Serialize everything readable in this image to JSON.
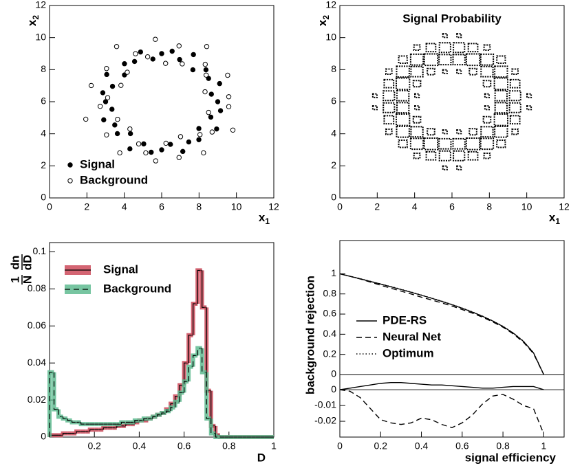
{
  "chart_data": [
    {
      "type": "scatter",
      "xlabel": {
        "base": "x",
        "sub": "1"
      },
      "ylabel": {
        "base": "x",
        "sub": "2"
      },
      "xlim": [
        0,
        12
      ],
      "ylim": [
        0,
        12
      ],
      "xticks": [
        0,
        2,
        4,
        6,
        8,
        10,
        12
      ],
      "yticks": [
        0,
        2,
        4,
        6,
        8,
        10,
        12
      ],
      "legend": "lower left",
      "series": [
        {
          "name": "Signal",
          "marker": "filled",
          "color": "#000000",
          "x": [
            9.0,
            8.66,
            9.1,
            8.51,
            8.37,
            7.67,
            7.7,
            6.96,
            6.56,
            6.0,
            5.53,
            4.87,
            4.55,
            4.01,
            4.01,
            3.06,
            3.37,
            2.85,
            3.0,
            3.34,
            2.9,
            3.49,
            3.63,
            4.33,
            4.3,
            5.04,
            5.44,
            6.0,
            6.47,
            7.13,
            7.45,
            7.99,
            7.99,
            8.94,
            8.63,
            9.15
          ],
          "values": [
            6.0,
            6.47,
            7.13,
            7.45,
            7.99,
            7.99,
            8.94,
            8.63,
            9.15,
            9.0,
            8.66,
            9.1,
            8.51,
            8.37,
            7.67,
            7.7,
            6.96,
            6.56,
            6.0,
            5.53,
            4.87,
            4.55,
            4.01,
            4.01,
            3.06,
            3.37,
            2.85,
            3.0,
            3.34,
            2.9,
            3.49,
            3.63,
            4.33,
            4.3,
            5.04,
            5.44
          ]
        },
        {
          "name": "Background",
          "marker": "open",
          "color": "#000000",
          "x": [
            9.59,
            8.32,
            9.53,
            8.38,
            8.33,
            8.41,
            7.1,
            6.93,
            6.21,
            5.66,
            5.25,
            4.6,
            3.59,
            4.16,
            3.05,
            3.82,
            2.23,
            3.11,
            2.71,
            1.94,
            3.64,
            3.05,
            4.3,
            3.76,
            4.77,
            5.15,
            5.68,
            6.23,
            6.93,
            7.01,
            8.24,
            8.05,
            8.7,
            9.81,
            8.51,
            9.59
          ],
          "values": [
            6.31,
            6.62,
            7.65,
            7.66,
            8.33,
            9.44,
            8.36,
            9.48,
            8.39,
            9.89,
            8.8,
            8.99,
            9.44,
            7.84,
            8.07,
            7.02,
            7.01,
            6.25,
            5.71,
            4.91,
            4.9,
            3.93,
            4.3,
            2.81,
            3.37,
            2.81,
            2.31,
            3.41,
            2.52,
            3.82,
            2.81,
            3.95,
            4.11,
            4.23,
            5.33,
            5.69
          ]
        }
      ]
    },
    {
      "type": "heatmap",
      "title": "Signal Probability",
      "xlabel": {
        "base": "x",
        "sub": "1"
      },
      "ylabel": {
        "base": "x",
        "sub": "2"
      },
      "xlim": [
        0,
        12
      ],
      "ylim": [
        0,
        12
      ],
      "xticks": [
        0,
        2,
        4,
        6,
        8,
        10,
        12
      ],
      "yticks": [
        0,
        2,
        4,
        6,
        8,
        10,
        12
      ],
      "color": "#000000",
      "xbins": [
        1.5,
        2.25,
        3,
        3.75,
        4.5,
        5.25,
        6,
        6.75,
        7.5,
        8.25,
        9,
        9.75,
        10.5
      ],
      "ybins": [
        1.5,
        2.25,
        3,
        3.75,
        4.5,
        5.25,
        6,
        6.75,
        7.5,
        8.25,
        9,
        9.75,
        10.5
      ],
      "values": [
        [
          0,
          0,
          0,
          0,
          0,
          0.1,
          0.1,
          0,
          0,
          0,
          0,
          0
        ],
        [
          0,
          0,
          0,
          0.2,
          0.5,
          0.7,
          0.7,
          0.5,
          0.2,
          0,
          0,
          0
        ],
        [
          0,
          0,
          0.4,
          0.9,
          1,
          0.8,
          0.8,
          1,
          0.9,
          0.4,
          0,
          0
        ],
        [
          0,
          0.2,
          0.9,
          0.8,
          0.3,
          0.1,
          0.1,
          0.3,
          0.8,
          0.9,
          0.2,
          0
        ],
        [
          0,
          0.5,
          1,
          0.3,
          0,
          0,
          0,
          0,
          0.3,
          1,
          0.5,
          0
        ],
        [
          0.1,
          0.7,
          0.8,
          0.1,
          0,
          0,
          0,
          0,
          0.1,
          0.8,
          0.7,
          0.1
        ],
        [
          0.1,
          0.7,
          0.8,
          0.1,
          0,
          0,
          0,
          0,
          0.1,
          0.8,
          0.7,
          0.1
        ],
        [
          0,
          0.5,
          1,
          0.3,
          0,
          0,
          0,
          0,
          0.3,
          1,
          0.5,
          0
        ],
        [
          0,
          0.2,
          0.9,
          0.8,
          0.3,
          0.1,
          0.1,
          0.3,
          0.8,
          0.9,
          0.2,
          0
        ],
        [
          0,
          0,
          0.4,
          0.9,
          1,
          0.8,
          0.8,
          1,
          0.9,
          0.4,
          0,
          0
        ],
        [
          0,
          0,
          0,
          0.2,
          0.5,
          0.7,
          0.7,
          0.5,
          0.2,
          0,
          0,
          0
        ],
        [
          0,
          0,
          0,
          0,
          0,
          0.1,
          0.1,
          0,
          0,
          0,
          0,
          0
        ]
      ]
    },
    {
      "type": "histogram",
      "xlabel": "D",
      "ylabel": {
        "num1": "1",
        "den1": "N",
        "num2": "dn",
        "den2": "dD"
      },
      "xlim": [
        0,
        1
      ],
      "ylim": [
        0,
        0.105
      ],
      "xticks": [
        0.2,
        0.4,
        0.6,
        0.8,
        1
      ],
      "yticks": [
        0,
        0.02,
        0.04,
        0.06,
        0.08,
        0.1
      ],
      "legend": "upper left",
      "bins": [
        0,
        0.02,
        0.04,
        0.06,
        0.08,
        0.1,
        0.12,
        0.14,
        0.16,
        0.18,
        0.2,
        0.22,
        0.24,
        0.26,
        0.28,
        0.3,
        0.32,
        0.34,
        0.36,
        0.38,
        0.4,
        0.42,
        0.44,
        0.46,
        0.48,
        0.5,
        0.52,
        0.54,
        0.56,
        0.58,
        0.6,
        0.62,
        0.64,
        0.66,
        0.68,
        0.7,
        0.72,
        0.74,
        0.76,
        0.78,
        0.8,
        0.82,
        0.84,
        0.86,
        0.88,
        0.9,
        0.92,
        0.94,
        0.96,
        0.98,
        1
      ],
      "series": [
        {
          "name": "Signal",
          "color": "#cc4a5a",
          "line": "solid",
          "values": [
            0.001,
            0.001,
            0.001,
            0.002,
            0.002,
            0.002,
            0.003,
            0.003,
            0.003,
            0.004,
            0.004,
            0.004,
            0.005,
            0.005,
            0.005,
            0.006,
            0.006,
            0.007,
            0.007,
            0.008,
            0.009,
            0.009,
            0.01,
            0.011,
            0.012,
            0.013,
            0.015,
            0.018,
            0.022,
            0.028,
            0.04,
            0.055,
            0.072,
            0.09,
            0.07,
            0.025,
            0.006,
            0.001,
            0,
            0,
            0,
            0,
            0,
            0,
            0,
            0,
            0,
            0,
            0,
            0
          ]
        },
        {
          "name": "Background",
          "color": "#5fbb90",
          "line": "dashed",
          "values": [
            0.035,
            0.015,
            0.011,
            0.01,
            0.009,
            0.008,
            0.008,
            0.007,
            0.007,
            0.007,
            0.007,
            0.007,
            0.007,
            0.007,
            0.007,
            0.007,
            0.008,
            0.008,
            0.008,
            0.009,
            0.009,
            0.01,
            0.01,
            0.011,
            0.012,
            0.013,
            0.014,
            0.016,
            0.019,
            0.024,
            0.03,
            0.038,
            0.044,
            0.048,
            0.035,
            0.01,
            0.002,
            0,
            0,
            0,
            0,
            0,
            0,
            0,
            0,
            0,
            0,
            0,
            0,
            0
          ]
        }
      ]
    },
    {
      "type": "line",
      "ylabel": "background rejection",
      "xlim": [
        0,
        1.1
      ],
      "ylim": [
        0,
        1.33
      ],
      "yticks": [
        0,
        0.2,
        0.4,
        0.6,
        0.8,
        1
      ],
      "legend": "lower left",
      "x": [
        0,
        0.05,
        0.1,
        0.15,
        0.2,
        0.25,
        0.3,
        0.35,
        0.4,
        0.45,
        0.5,
        0.55,
        0.6,
        0.65,
        0.7,
        0.75,
        0.8,
        0.85,
        0.9,
        0.95,
        1
      ],
      "series": [
        {
          "name": "PDE-RS",
          "color": "#000000",
          "line": "solid",
          "values": [
            1.0,
            0.975,
            0.95,
            0.924,
            0.898,
            0.871,
            0.844,
            0.816,
            0.787,
            0.757,
            0.726,
            0.693,
            0.658,
            0.62,
            0.578,
            0.531,
            0.477,
            0.412,
            0.33,
            0.215,
            0.0
          ]
        },
        {
          "name": "Neural Net",
          "color": "#000000",
          "line": "dashed",
          "values": [
            1.0,
            0.975,
            0.948,
            0.918,
            0.886,
            0.857,
            0.828,
            0.799,
            0.768,
            0.74,
            0.711,
            0.68,
            0.645,
            0.61,
            0.569,
            0.522,
            0.47,
            0.404,
            0.322,
            0.207,
            0.0
          ]
        },
        {
          "name": "Optimum",
          "color": "#000000",
          "line": "dotted",
          "values": [
            1.0,
            0.976,
            0.951,
            0.925,
            0.899,
            0.873,
            0.846,
            0.818,
            0.789,
            0.759,
            0.728,
            0.695,
            0.66,
            0.622,
            0.58,
            0.533,
            0.479,
            0.414,
            0.332,
            0.217,
            0.0
          ]
        }
      ]
    },
    {
      "type": "line",
      "xlabel": "signal efficiency",
      "xlim": [
        0,
        1.1
      ],
      "ylim": [
        -0.03,
        0.0096
      ],
      "xticks": [
        0,
        0.2,
        0.4,
        0.6,
        0.8,
        1
      ],
      "yticks": [
        -0.02,
        -0.01,
        0
      ],
      "x": [
        0,
        0.05,
        0.1,
        0.15,
        0.2,
        0.25,
        0.3,
        0.35,
        0.4,
        0.45,
        0.5,
        0.55,
        0.6,
        0.65,
        0.7,
        0.75,
        0.8,
        0.85,
        0.9,
        0.95,
        1
      ],
      "series": [
        {
          "color": "#000000",
          "line": "solid",
          "values": [
            0,
            0.001,
            0.002,
            0.003,
            0.004,
            0.0045,
            0.0045,
            0.004,
            0.0035,
            0.003,
            0.003,
            0.0025,
            0.002,
            0.0015,
            0.001,
            0.001,
            0.0015,
            0.002,
            0.002,
            0.002,
            0
          ]
        },
        {
          "color": "#000000",
          "line": "dashed",
          "values": [
            0,
            -0.001,
            -0.005,
            -0.012,
            -0.019,
            -0.021,
            -0.022,
            -0.021,
            -0.018,
            -0.019,
            -0.022,
            -0.024,
            -0.021,
            -0.016,
            -0.009,
            -0.004,
            -0.003,
            -0.006,
            -0.01,
            -0.012,
            -0.028
          ]
        }
      ]
    }
  ]
}
